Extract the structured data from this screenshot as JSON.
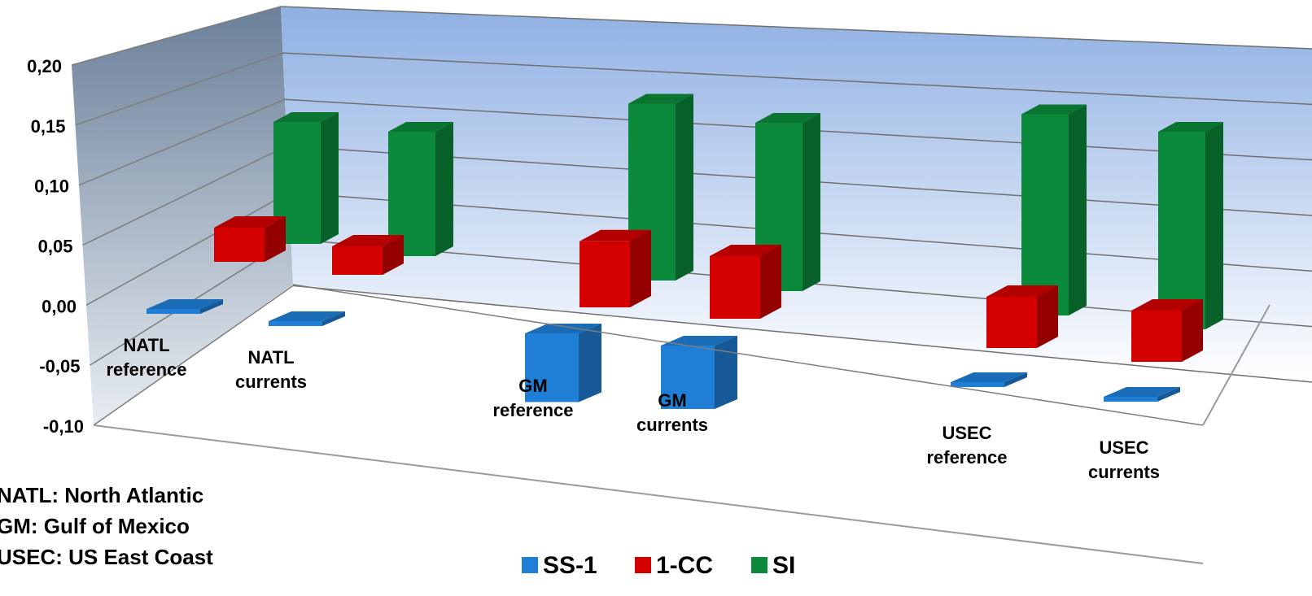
{
  "chart_data": {
    "type": "bar",
    "title": "",
    "xlabel": "",
    "ylabel": "",
    "ylim": [
      -0.1,
      0.2
    ],
    "y_ticks": [
      "0,20",
      "0,15",
      "0,10",
      "0,05",
      "0,00",
      "-0,05",
      "-0,10"
    ],
    "y_tick_values": [
      0.2,
      0.15,
      0.1,
      0.05,
      0.0,
      -0.05,
      -0.1
    ],
    "categories": [
      {
        "line1": "NATL",
        "line2": "reference"
      },
      {
        "line1": "NATL",
        "line2": "currents"
      },
      {
        "line1": "GM",
        "line2": "reference"
      },
      {
        "line1": "GM",
        "line2": "currents"
      },
      {
        "line1": "USEC",
        "line2": "reference"
      },
      {
        "line1": "USEC",
        "line2": "currents"
      }
    ],
    "series": [
      {
        "name": "SS-1",
        "color": "#1f7fd6",
        "values": [
          -0.002,
          -0.003,
          -0.065,
          -0.06,
          -0.003,
          -0.004
        ]
      },
      {
        "name": "1-CC",
        "color": "#d40000",
        "values": [
          0.03,
          0.025,
          0.058,
          0.055,
          0.045,
          0.045
        ]
      },
      {
        "name": "SI",
        "color": "#0a8a3a",
        "values": [
          0.1,
          0.102,
          0.145,
          0.138,
          0.165,
          0.162
        ]
      }
    ],
    "grid": true,
    "legend_position": "bottom",
    "annotations": [
      "NATL: North Atlantic",
      "GM: Gulf of Mexico",
      "USEC: US East Coast"
    ]
  }
}
